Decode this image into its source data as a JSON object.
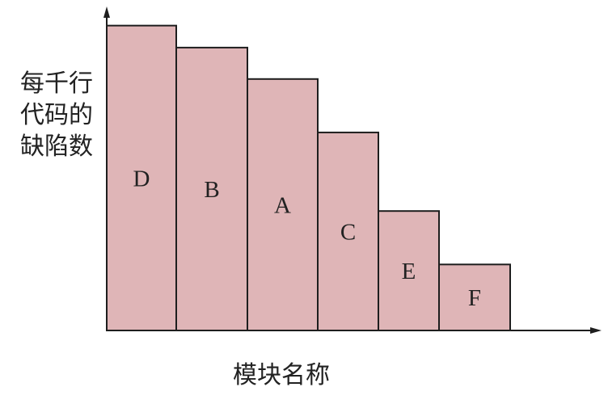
{
  "chart_data": {
    "type": "bar",
    "categories": [
      "D",
      "B",
      "A",
      "C",
      "E",
      "F"
    ],
    "values": [
      97,
      90,
      80,
      63,
      38,
      21
    ],
    "ylabel_lines": [
      "每千行",
      "代码的",
      "缺陷数"
    ],
    "xlabel": "模块名称",
    "ylim": [
      0,
      100
    ],
    "grid": false,
    "legend": "none",
    "colors": {
      "bar_fill": "#dfb5b7",
      "bar_stroke": "#1e1e1e",
      "axis": "#1e1e1e",
      "text": "#222222"
    }
  }
}
